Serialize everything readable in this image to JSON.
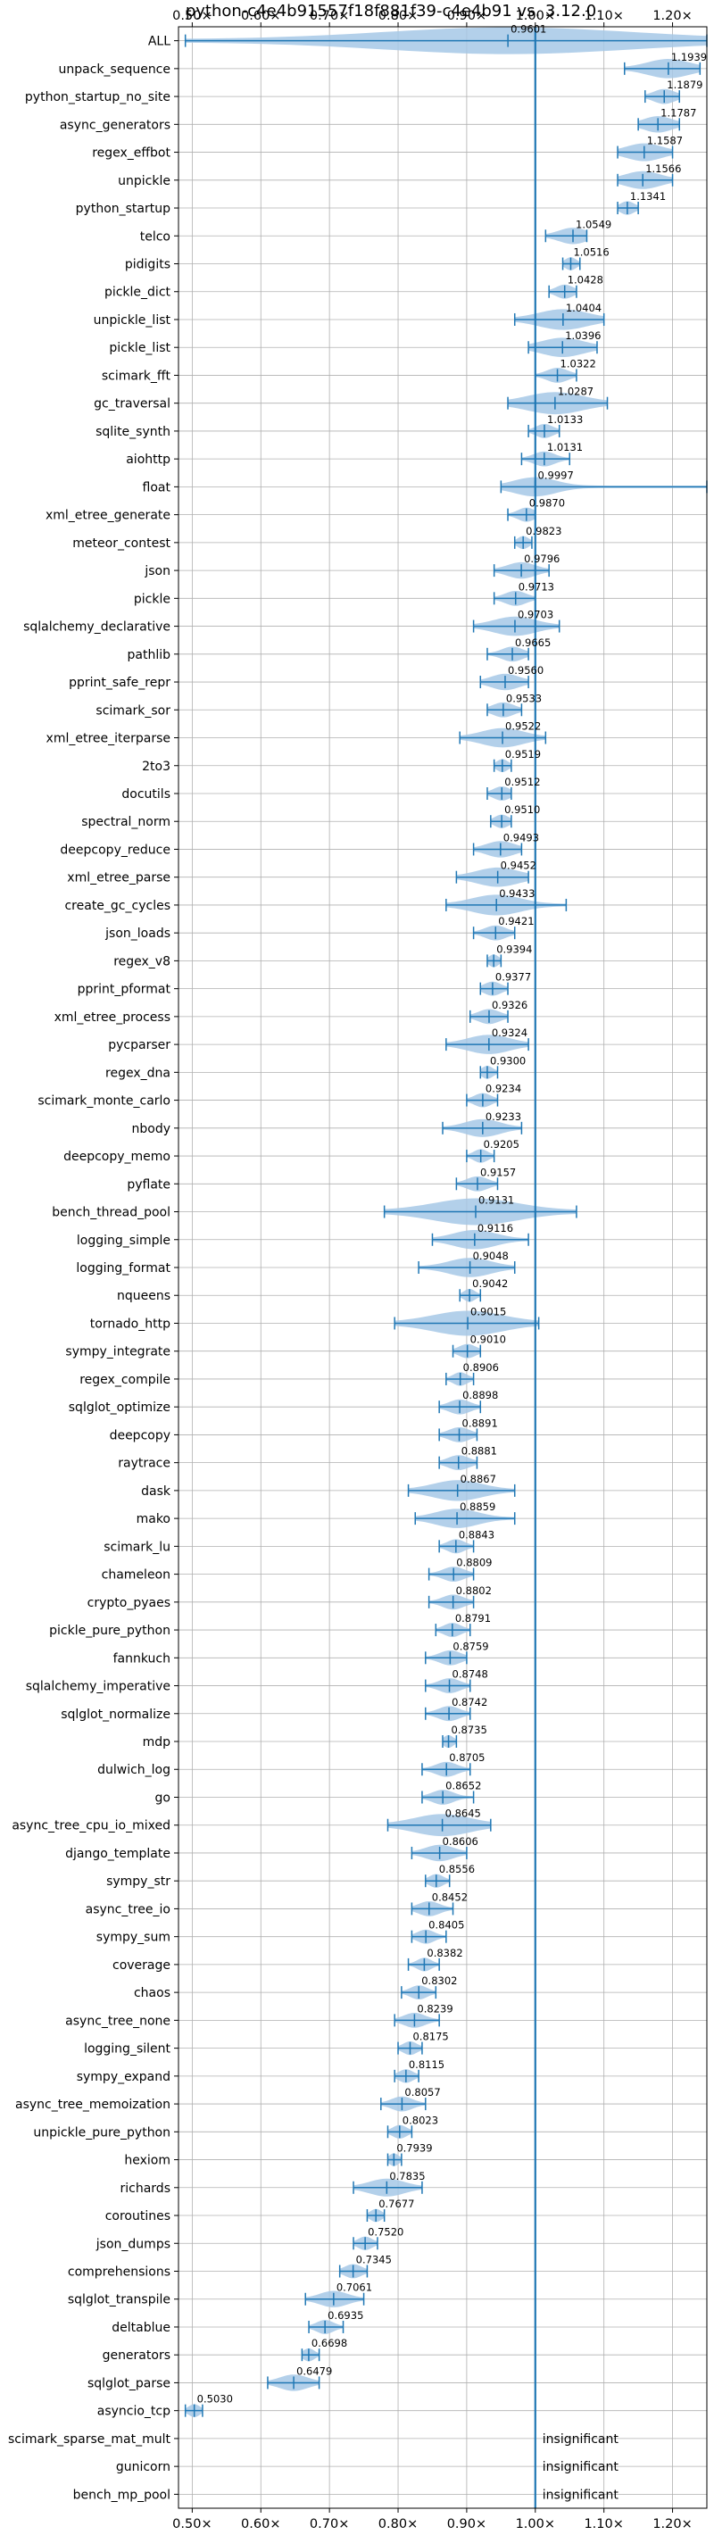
{
  "chart_data": {
    "type": "violin",
    "title": "python-c4e4b91557f18f881f39-c4e4b91 vs. 3.12.0",
    "xlim": [
      0.48,
      1.25
    ],
    "xticks": [
      0.5,
      0.6,
      0.7,
      0.8,
      0.9,
      1.0,
      1.1,
      1.2
    ],
    "xtick_labels": [
      "0.50×",
      "0.60×",
      "0.70×",
      "0.80×",
      "0.90×",
      "1.00×",
      "1.10×",
      "1.20×"
    ],
    "reference_line": 1.0,
    "grid": true,
    "colors": {
      "accent": "#1f77b4",
      "violin": "#a6c8e6",
      "grid": "#b0b0b0"
    },
    "benchmarks": [
      {
        "name": "ALL",
        "median": 0.9601,
        "label": "0.9601",
        "min": 0.49,
        "max": 1.25,
        "spread": 0.18
      },
      {
        "name": "unpack_sequence",
        "median": 1.1939,
        "label": "1.1939",
        "min": 1.13,
        "max": 1.24,
        "spread": 0.03
      },
      {
        "name": "python_startup_no_site",
        "median": 1.1879,
        "label": "1.1879",
        "min": 1.16,
        "max": 1.21,
        "spread": 0.015
      },
      {
        "name": "async_generators",
        "median": 1.1787,
        "label": "1.1787",
        "min": 1.15,
        "max": 1.21,
        "spread": 0.02
      },
      {
        "name": "regex_effbot",
        "median": 1.1587,
        "label": "1.1587",
        "min": 1.12,
        "max": 1.2,
        "spread": 0.025
      },
      {
        "name": "unpickle",
        "median": 1.1566,
        "label": "1.1566",
        "min": 1.12,
        "max": 1.2,
        "spread": 0.025
      },
      {
        "name": "python_startup",
        "median": 1.1341,
        "label": "1.1341",
        "min": 1.12,
        "max": 1.15,
        "spread": 0.01
      },
      {
        "name": "telco",
        "median": 1.0549,
        "label": "1.0549",
        "min": 1.015,
        "max": 1.075,
        "spread": 0.02
      },
      {
        "name": "pidigits",
        "median": 1.0516,
        "label": "1.0516",
        "min": 1.04,
        "max": 1.065,
        "spread": 0.008
      },
      {
        "name": "pickle_dict",
        "median": 1.0428,
        "label": "1.0428",
        "min": 1.02,
        "max": 1.06,
        "spread": 0.012
      },
      {
        "name": "unpickle_list",
        "median": 1.0404,
        "label": "1.0404",
        "min": 0.97,
        "max": 1.1,
        "spread": 0.035
      },
      {
        "name": "pickle_list",
        "median": 1.0396,
        "label": "1.0396",
        "min": 0.99,
        "max": 1.09,
        "spread": 0.03
      },
      {
        "name": "scimark_fft",
        "median": 1.0322,
        "label": "1.0322",
        "min": 1.0,
        "max": 1.06,
        "spread": 0.015
      },
      {
        "name": "gc_traversal",
        "median": 1.0287,
        "label": "1.0287",
        "min": 0.96,
        "max": 1.105,
        "spread": 0.04
      },
      {
        "name": "sqlite_synth",
        "median": 1.0133,
        "label": "1.0133",
        "min": 0.99,
        "max": 1.035,
        "spread": 0.012
      },
      {
        "name": "aiohttp",
        "median": 1.0131,
        "label": "1.0131",
        "min": 0.98,
        "max": 1.05,
        "spread": 0.015
      },
      {
        "name": "float",
        "median": 0.9997,
        "label": "0.9997",
        "min": 0.95,
        "max": 1.25,
        "spread": 0.03
      },
      {
        "name": "xml_etree_generate",
        "median": 0.987,
        "label": "0.9870",
        "min": 0.96,
        "max": 1.0,
        "spread": 0.012
      },
      {
        "name": "meteor_contest",
        "median": 0.9823,
        "label": "0.9823",
        "min": 0.97,
        "max": 0.995,
        "spread": 0.008
      },
      {
        "name": "json",
        "median": 0.9796,
        "label": "0.9796",
        "min": 0.94,
        "max": 1.02,
        "spread": 0.02
      },
      {
        "name": "pickle",
        "median": 0.9713,
        "label": "0.9713",
        "min": 0.94,
        "max": 1.0,
        "spread": 0.015
      },
      {
        "name": "sqlalchemy_declarative",
        "median": 0.9703,
        "label": "0.9703",
        "min": 0.91,
        "max": 1.035,
        "spread": 0.03
      },
      {
        "name": "pathlib",
        "median": 0.9665,
        "label": "0.9665",
        "min": 0.93,
        "max": 0.99,
        "spread": 0.015
      },
      {
        "name": "pprint_safe_repr",
        "median": 0.956,
        "label": "0.9560",
        "min": 0.92,
        "max": 0.99,
        "spread": 0.02
      },
      {
        "name": "scimark_sor",
        "median": 0.9533,
        "label": "0.9533",
        "min": 0.93,
        "max": 0.98,
        "spread": 0.015
      },
      {
        "name": "xml_etree_iterparse",
        "median": 0.9522,
        "label": "0.9522",
        "min": 0.89,
        "max": 1.015,
        "spread": 0.03
      },
      {
        "name": "2to3",
        "median": 0.9519,
        "label": "0.9519",
        "min": 0.94,
        "max": 0.965,
        "spread": 0.008
      },
      {
        "name": "docutils",
        "median": 0.9512,
        "label": "0.9512",
        "min": 0.93,
        "max": 0.965,
        "spread": 0.012
      },
      {
        "name": "spectral_norm",
        "median": 0.951,
        "label": "0.9510",
        "min": 0.935,
        "max": 0.965,
        "spread": 0.01
      },
      {
        "name": "deepcopy_reduce",
        "median": 0.9493,
        "label": "0.9493",
        "min": 0.91,
        "max": 0.98,
        "spread": 0.02
      },
      {
        "name": "xml_etree_parse",
        "median": 0.9452,
        "label": "0.9452",
        "min": 0.885,
        "max": 0.99,
        "spread": 0.03
      },
      {
        "name": "create_gc_cycles",
        "median": 0.9433,
        "label": "0.9433",
        "min": 0.87,
        "max": 1.045,
        "spread": 0.035
      },
      {
        "name": "json_loads",
        "median": 0.9421,
        "label": "0.9421",
        "min": 0.91,
        "max": 0.97,
        "spread": 0.015
      },
      {
        "name": "regex_v8",
        "median": 0.9394,
        "label": "0.9394",
        "min": 0.93,
        "max": 0.95,
        "spread": 0.007
      },
      {
        "name": "pprint_pformat",
        "median": 0.9377,
        "label": "0.9377",
        "min": 0.92,
        "max": 0.96,
        "spread": 0.012
      },
      {
        "name": "xml_etree_process",
        "median": 0.9326,
        "label": "0.9326",
        "min": 0.905,
        "max": 0.96,
        "spread": 0.015
      },
      {
        "name": "pycparser",
        "median": 0.9324,
        "label": "0.9324",
        "min": 0.87,
        "max": 0.99,
        "spread": 0.03
      },
      {
        "name": "regex_dna",
        "median": 0.93,
        "label": "0.9300",
        "min": 0.92,
        "max": 0.945,
        "spread": 0.008
      },
      {
        "name": "scimark_monte_carlo",
        "median": 0.9234,
        "label": "0.9234",
        "min": 0.9,
        "max": 0.945,
        "spread": 0.012
      },
      {
        "name": "nbody",
        "median": 0.9233,
        "label": "0.9233",
        "min": 0.865,
        "max": 0.98,
        "spread": 0.025
      },
      {
        "name": "deepcopy_memo",
        "median": 0.9205,
        "label": "0.9205",
        "min": 0.9,
        "max": 0.94,
        "spread": 0.01
      },
      {
        "name": "pyflate",
        "median": 0.9157,
        "label": "0.9157",
        "min": 0.885,
        "max": 0.945,
        "spread": 0.015
      },
      {
        "name": "bench_thread_pool",
        "median": 0.9131,
        "label": "0.9131",
        "min": 0.78,
        "max": 1.06,
        "spread": 0.06
      },
      {
        "name": "logging_simple",
        "median": 0.9116,
        "label": "0.9116",
        "min": 0.85,
        "max": 0.99,
        "spread": 0.03
      },
      {
        "name": "logging_format",
        "median": 0.9048,
        "label": "0.9048",
        "min": 0.83,
        "max": 0.97,
        "spread": 0.03
      },
      {
        "name": "nqueens",
        "median": 0.9042,
        "label": "0.9042",
        "min": 0.89,
        "max": 0.92,
        "spread": 0.008
      },
      {
        "name": "tornado_http",
        "median": 0.9015,
        "label": "0.9015",
        "min": 0.795,
        "max": 1.005,
        "spread": 0.05
      },
      {
        "name": "sympy_integrate",
        "median": 0.901,
        "label": "0.9010",
        "min": 0.88,
        "max": 0.92,
        "spread": 0.012
      },
      {
        "name": "regex_compile",
        "median": 0.8906,
        "label": "0.8906",
        "min": 0.87,
        "max": 0.91,
        "spread": 0.01
      },
      {
        "name": "sqlglot_optimize",
        "median": 0.8898,
        "label": "0.8898",
        "min": 0.86,
        "max": 0.92,
        "spread": 0.015
      },
      {
        "name": "deepcopy",
        "median": 0.8891,
        "label": "0.8891",
        "min": 0.86,
        "max": 0.915,
        "spread": 0.015
      },
      {
        "name": "raytrace",
        "median": 0.8881,
        "label": "0.8881",
        "min": 0.86,
        "max": 0.915,
        "spread": 0.015
      },
      {
        "name": "dask",
        "median": 0.8867,
        "label": "0.8867",
        "min": 0.815,
        "max": 0.97,
        "spread": 0.035
      },
      {
        "name": "mako",
        "median": 0.8859,
        "label": "0.8859",
        "min": 0.825,
        "max": 0.97,
        "spread": 0.03
      },
      {
        "name": "scimark_lu",
        "median": 0.8843,
        "label": "0.8843",
        "min": 0.86,
        "max": 0.91,
        "spread": 0.012
      },
      {
        "name": "chameleon",
        "median": 0.8809,
        "label": "0.8809",
        "min": 0.845,
        "max": 0.91,
        "spread": 0.015
      },
      {
        "name": "crypto_pyaes",
        "median": 0.8802,
        "label": "0.8802",
        "min": 0.845,
        "max": 0.91,
        "spread": 0.015
      },
      {
        "name": "pickle_pure_python",
        "median": 0.8791,
        "label": "0.8791",
        "min": 0.855,
        "max": 0.905,
        "spread": 0.012
      },
      {
        "name": "fannkuch",
        "median": 0.8759,
        "label": "0.8759",
        "min": 0.84,
        "max": 0.9,
        "spread": 0.015
      },
      {
        "name": "sqlalchemy_imperative",
        "median": 0.8748,
        "label": "0.8748",
        "min": 0.84,
        "max": 0.905,
        "spread": 0.015
      },
      {
        "name": "sqlglot_normalize",
        "median": 0.8742,
        "label": "0.8742",
        "min": 0.84,
        "max": 0.905,
        "spread": 0.015
      },
      {
        "name": "mdp",
        "median": 0.8735,
        "label": "0.8735",
        "min": 0.865,
        "max": 0.885,
        "spread": 0.007
      },
      {
        "name": "dulwich_log",
        "median": 0.8705,
        "label": "0.8705",
        "min": 0.835,
        "max": 0.905,
        "spread": 0.015
      },
      {
        "name": "go",
        "median": 0.8652,
        "label": "0.8652",
        "min": 0.835,
        "max": 0.91,
        "spread": 0.015
      },
      {
        "name": "async_tree_cpu_io_mixed",
        "median": 0.8645,
        "label": "0.8645",
        "min": 0.785,
        "max": 0.935,
        "spread": 0.04
      },
      {
        "name": "django_template",
        "median": 0.8606,
        "label": "0.8606",
        "min": 0.82,
        "max": 0.9,
        "spread": 0.02
      },
      {
        "name": "sympy_str",
        "median": 0.8556,
        "label": "0.8556",
        "min": 0.84,
        "max": 0.875,
        "spread": 0.01
      },
      {
        "name": "async_tree_io",
        "median": 0.8452,
        "label": "0.8452",
        "min": 0.82,
        "max": 0.88,
        "spread": 0.015
      },
      {
        "name": "sympy_sum",
        "median": 0.8405,
        "label": "0.8405",
        "min": 0.82,
        "max": 0.87,
        "spread": 0.012
      },
      {
        "name": "coverage",
        "median": 0.8382,
        "label": "0.8382",
        "min": 0.815,
        "max": 0.86,
        "spread": 0.01
      },
      {
        "name": "chaos",
        "median": 0.8302,
        "label": "0.8302",
        "min": 0.805,
        "max": 0.855,
        "spread": 0.012
      },
      {
        "name": "async_tree_none",
        "median": 0.8239,
        "label": "0.8239",
        "min": 0.795,
        "max": 0.86,
        "spread": 0.015
      },
      {
        "name": "logging_silent",
        "median": 0.8175,
        "label": "0.8175",
        "min": 0.8,
        "max": 0.835,
        "spread": 0.01
      },
      {
        "name": "sympy_expand",
        "median": 0.8115,
        "label": "0.8115",
        "min": 0.795,
        "max": 0.83,
        "spread": 0.01
      },
      {
        "name": "async_tree_memoization",
        "median": 0.8057,
        "label": "0.8057",
        "min": 0.775,
        "max": 0.84,
        "spread": 0.015
      },
      {
        "name": "unpickle_pure_python",
        "median": 0.8023,
        "label": "0.8023",
        "min": 0.785,
        "max": 0.82,
        "spread": 0.01
      },
      {
        "name": "hexiom",
        "median": 0.7939,
        "label": "0.7939",
        "min": 0.785,
        "max": 0.805,
        "spread": 0.007
      },
      {
        "name": "richards",
        "median": 0.7835,
        "label": "0.7835",
        "min": 0.735,
        "max": 0.835,
        "spread": 0.025
      },
      {
        "name": "coroutines",
        "median": 0.7677,
        "label": "0.7677",
        "min": 0.755,
        "max": 0.78,
        "spread": 0.008
      },
      {
        "name": "json_dumps",
        "median": 0.752,
        "label": "0.7520",
        "min": 0.735,
        "max": 0.77,
        "spread": 0.01
      },
      {
        "name": "comprehensions",
        "median": 0.7345,
        "label": "0.7345",
        "min": 0.715,
        "max": 0.755,
        "spread": 0.012
      },
      {
        "name": "sqlglot_transpile",
        "median": 0.7061,
        "label": "0.7061",
        "min": 0.665,
        "max": 0.75,
        "spread": 0.02
      },
      {
        "name": "deltablue",
        "median": 0.6935,
        "label": "0.6935",
        "min": 0.67,
        "max": 0.72,
        "spread": 0.012
      },
      {
        "name": "generators",
        "median": 0.6698,
        "label": "0.6698",
        "min": 0.66,
        "max": 0.685,
        "spread": 0.008
      },
      {
        "name": "sqlglot_parse",
        "median": 0.6479,
        "label": "0.6479",
        "min": 0.61,
        "max": 0.685,
        "spread": 0.02
      },
      {
        "name": "asyncio_tcp",
        "median": 0.503,
        "label": "0.5030",
        "min": 0.49,
        "max": 0.515,
        "spread": 0.008
      },
      {
        "name": "scimark_sparse_mat_mult",
        "insignificant": true,
        "note": "insignificant"
      },
      {
        "name": "gunicorn",
        "insignificant": true,
        "note": "insignificant"
      },
      {
        "name": "bench_mp_pool",
        "insignificant": true,
        "note": "insignificant"
      }
    ]
  }
}
